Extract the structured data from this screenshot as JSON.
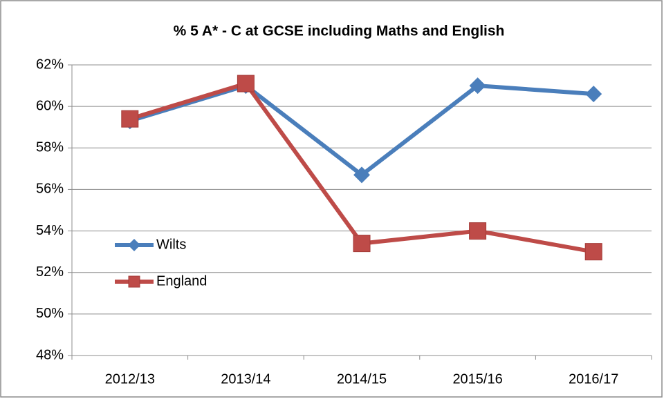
{
  "chart_data": {
    "type": "line",
    "title": "% 5 A* - C at GCSE including Maths and English",
    "categories": [
      "2012/13",
      "2013/14",
      "2014/15",
      "2015/16",
      "2016/17"
    ],
    "series": [
      {
        "name": "Wilts",
        "color": "#4a7ebb",
        "marker": "diamond",
        "values": [
          59.3,
          61.0,
          56.7,
          61.0,
          60.6
        ]
      },
      {
        "name": "England",
        "color": "#be4b48",
        "marker": "square",
        "values": [
          59.4,
          61.1,
          53.4,
          54.0,
          53.0
        ]
      }
    ],
    "ylim": [
      48,
      62
    ],
    "yticks": [
      {
        "value": 48,
        "label": "48%"
      },
      {
        "value": 50,
        "label": "50%"
      },
      {
        "value": 52,
        "label": "52%"
      },
      {
        "value": 54,
        "label": "54%"
      },
      {
        "value": 56,
        "label": "56%"
      },
      {
        "value": 58,
        "label": "58%"
      },
      {
        "value": 60,
        "label": "60%"
      },
      {
        "value": 62,
        "label": "62%"
      }
    ],
    "grid": true,
    "legend_position": "left"
  }
}
